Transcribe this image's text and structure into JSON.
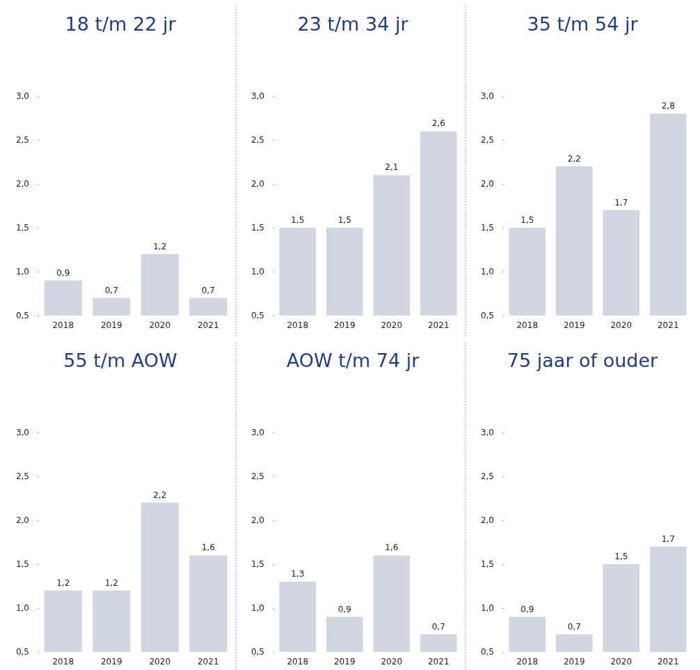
{
  "chart_data": [
    {
      "type": "bar",
      "title": "18 t/m 22 jr",
      "categories": [
        "2018",
        "2019",
        "2020",
        "2021"
      ],
      "values": [
        0.9,
        0.7,
        1.2,
        0.7
      ],
      "value_labels": [
        "0,9",
        "0,7",
        "1,2",
        "0,7"
      ],
      "color": "#d0d7e2",
      "ylim": [
        0.5,
        3.0
      ],
      "yticks": [
        {
          "value": 0.5,
          "label": "0,5"
        },
        {
          "value": 1.0,
          "label": "1,0"
        },
        {
          "value": 1.5,
          "label": "1,5"
        },
        {
          "value": 2.0,
          "label": "2,0"
        },
        {
          "value": 2.5,
          "label": "2,5"
        },
        {
          "value": 3.0,
          "label": "3,0"
        }
      ]
    },
    {
      "type": "bar",
      "title": "23 t/m 34 jr",
      "categories": [
        "2018",
        "2019",
        "2020",
        "2021"
      ],
      "values": [
        1.5,
        1.5,
        2.1,
        2.6
      ],
      "value_labels": [
        "1,5",
        "1,5",
        "2,1",
        "2,6"
      ],
      "color": "#d0d7e2",
      "ylim": [
        0.5,
        3.0
      ],
      "yticks": [
        {
          "value": 0.5,
          "label": "0,5"
        },
        {
          "value": 1.0,
          "label": "1,0"
        },
        {
          "value": 1.5,
          "label": "1,5"
        },
        {
          "value": 2.0,
          "label": "2,0"
        },
        {
          "value": 2.5,
          "label": "2,5"
        },
        {
          "value": 3.0,
          "label": "3,0"
        }
      ]
    },
    {
      "type": "bar",
      "title": "35 t/m 54 jr",
      "categories": [
        "2018",
        "2019",
        "2020",
        "2021"
      ],
      "values": [
        1.5,
        2.2,
        1.7,
        2.8
      ],
      "value_labels": [
        "1,5",
        "2,2",
        "1,7",
        "2,8"
      ],
      "color": "#d0d7e2",
      "ylim": [
        0.5,
        3.0
      ],
      "yticks": [
        {
          "value": 0.5,
          "label": "0,5"
        },
        {
          "value": 1.0,
          "label": "1,0"
        },
        {
          "value": 1.5,
          "label": "1,5"
        },
        {
          "value": 2.0,
          "label": "2,0"
        },
        {
          "value": 2.5,
          "label": "2,5"
        },
        {
          "value": 3.0,
          "label": "3,0"
        }
      ]
    },
    {
      "type": "bar",
      "title": "55 t/m AOW",
      "categories": [
        "2018",
        "2019",
        "2020",
        "2021"
      ],
      "values": [
        1.2,
        1.2,
        2.2,
        1.6
      ],
      "value_labels": [
        "1,2",
        "1,2",
        "2,2",
        "1,6"
      ],
      "color": "#d0d7e2",
      "ylim": [
        0.5,
        3.0
      ],
      "yticks": [
        {
          "value": 0.5,
          "label": "0,5"
        },
        {
          "value": 1.0,
          "label": "1,0"
        },
        {
          "value": 1.5,
          "label": "1,5"
        },
        {
          "value": 2.0,
          "label": "2,0"
        },
        {
          "value": 2.5,
          "label": "2,5"
        },
        {
          "value": 3.0,
          "label": "3,0"
        }
      ]
    },
    {
      "type": "bar",
      "title": "AOW t/m 74 jr",
      "categories": [
        "2018",
        "2019",
        "2020",
        "2021"
      ],
      "values": [
        1.3,
        0.9,
        1.6,
        0.7
      ],
      "value_labels": [
        "1,3",
        "0,9",
        "1,6",
        "0,7"
      ],
      "color": "#d0d7e2",
      "ylim": [
        0.5,
        3.0
      ],
      "yticks": [
        {
          "value": 0.5,
          "label": "0,5"
        },
        {
          "value": 1.0,
          "label": "1,0"
        },
        {
          "value": 1.5,
          "label": "1,5"
        },
        {
          "value": 2.0,
          "label": "2,0"
        },
        {
          "value": 2.5,
          "label": "2,5"
        },
        {
          "value": 3.0,
          "label": "3,0"
        }
      ]
    },
    {
      "type": "bar",
      "title": "75 jaar of ouder",
      "categories": [
        "2018",
        "2019",
        "2020",
        "2021"
      ],
      "values": [
        0.9,
        0.7,
        1.5,
        1.7
      ],
      "value_labels": [
        "0,9",
        "0,7",
        "1,5",
        "1,7"
      ],
      "color": "#d0d7e2",
      "ylim": [
        0.5,
        3.0
      ],
      "yticks": [
        {
          "value": 0.5,
          "label": "0,5"
        },
        {
          "value": 1.0,
          "label": "1,0"
        },
        {
          "value": 1.5,
          "label": "1,5"
        },
        {
          "value": 2.0,
          "label": "2,0"
        },
        {
          "value": 2.5,
          "label": "2,5"
        },
        {
          "value": 3.0,
          "label": "3,0"
        }
      ]
    }
  ]
}
